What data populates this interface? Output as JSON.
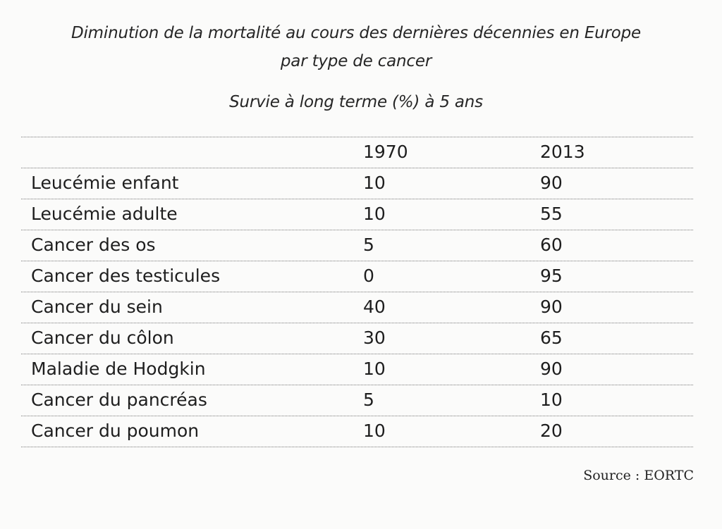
{
  "title_line1": "Diminution de la mortalité au cours des dernières décennies en Europe",
  "title_line2": "par type de cancer",
  "subtitle": "Survie à long terme (%) à 5 ans",
  "table": {
    "headers": [
      "",
      "1970",
      "2013"
    ],
    "rows": [
      [
        "Leucémie enfant",
        "10",
        "90"
      ],
      [
        "Leucémie adulte",
        "10",
        "55"
      ],
      [
        "Cancer des os",
        "5",
        "60"
      ],
      [
        "Cancer des testicules",
        "0",
        "95"
      ],
      [
        "Cancer du sein",
        "40",
        "90"
      ],
      [
        "Cancer du côlon",
        "30",
        "65"
      ],
      [
        "Maladie de Hodgkin",
        "10",
        "90"
      ],
      [
        "Cancer du pancréas",
        "5",
        "10"
      ],
      [
        "Cancer du poumon",
        "10",
        "20"
      ]
    ]
  },
  "source": "Source : EORTC"
}
